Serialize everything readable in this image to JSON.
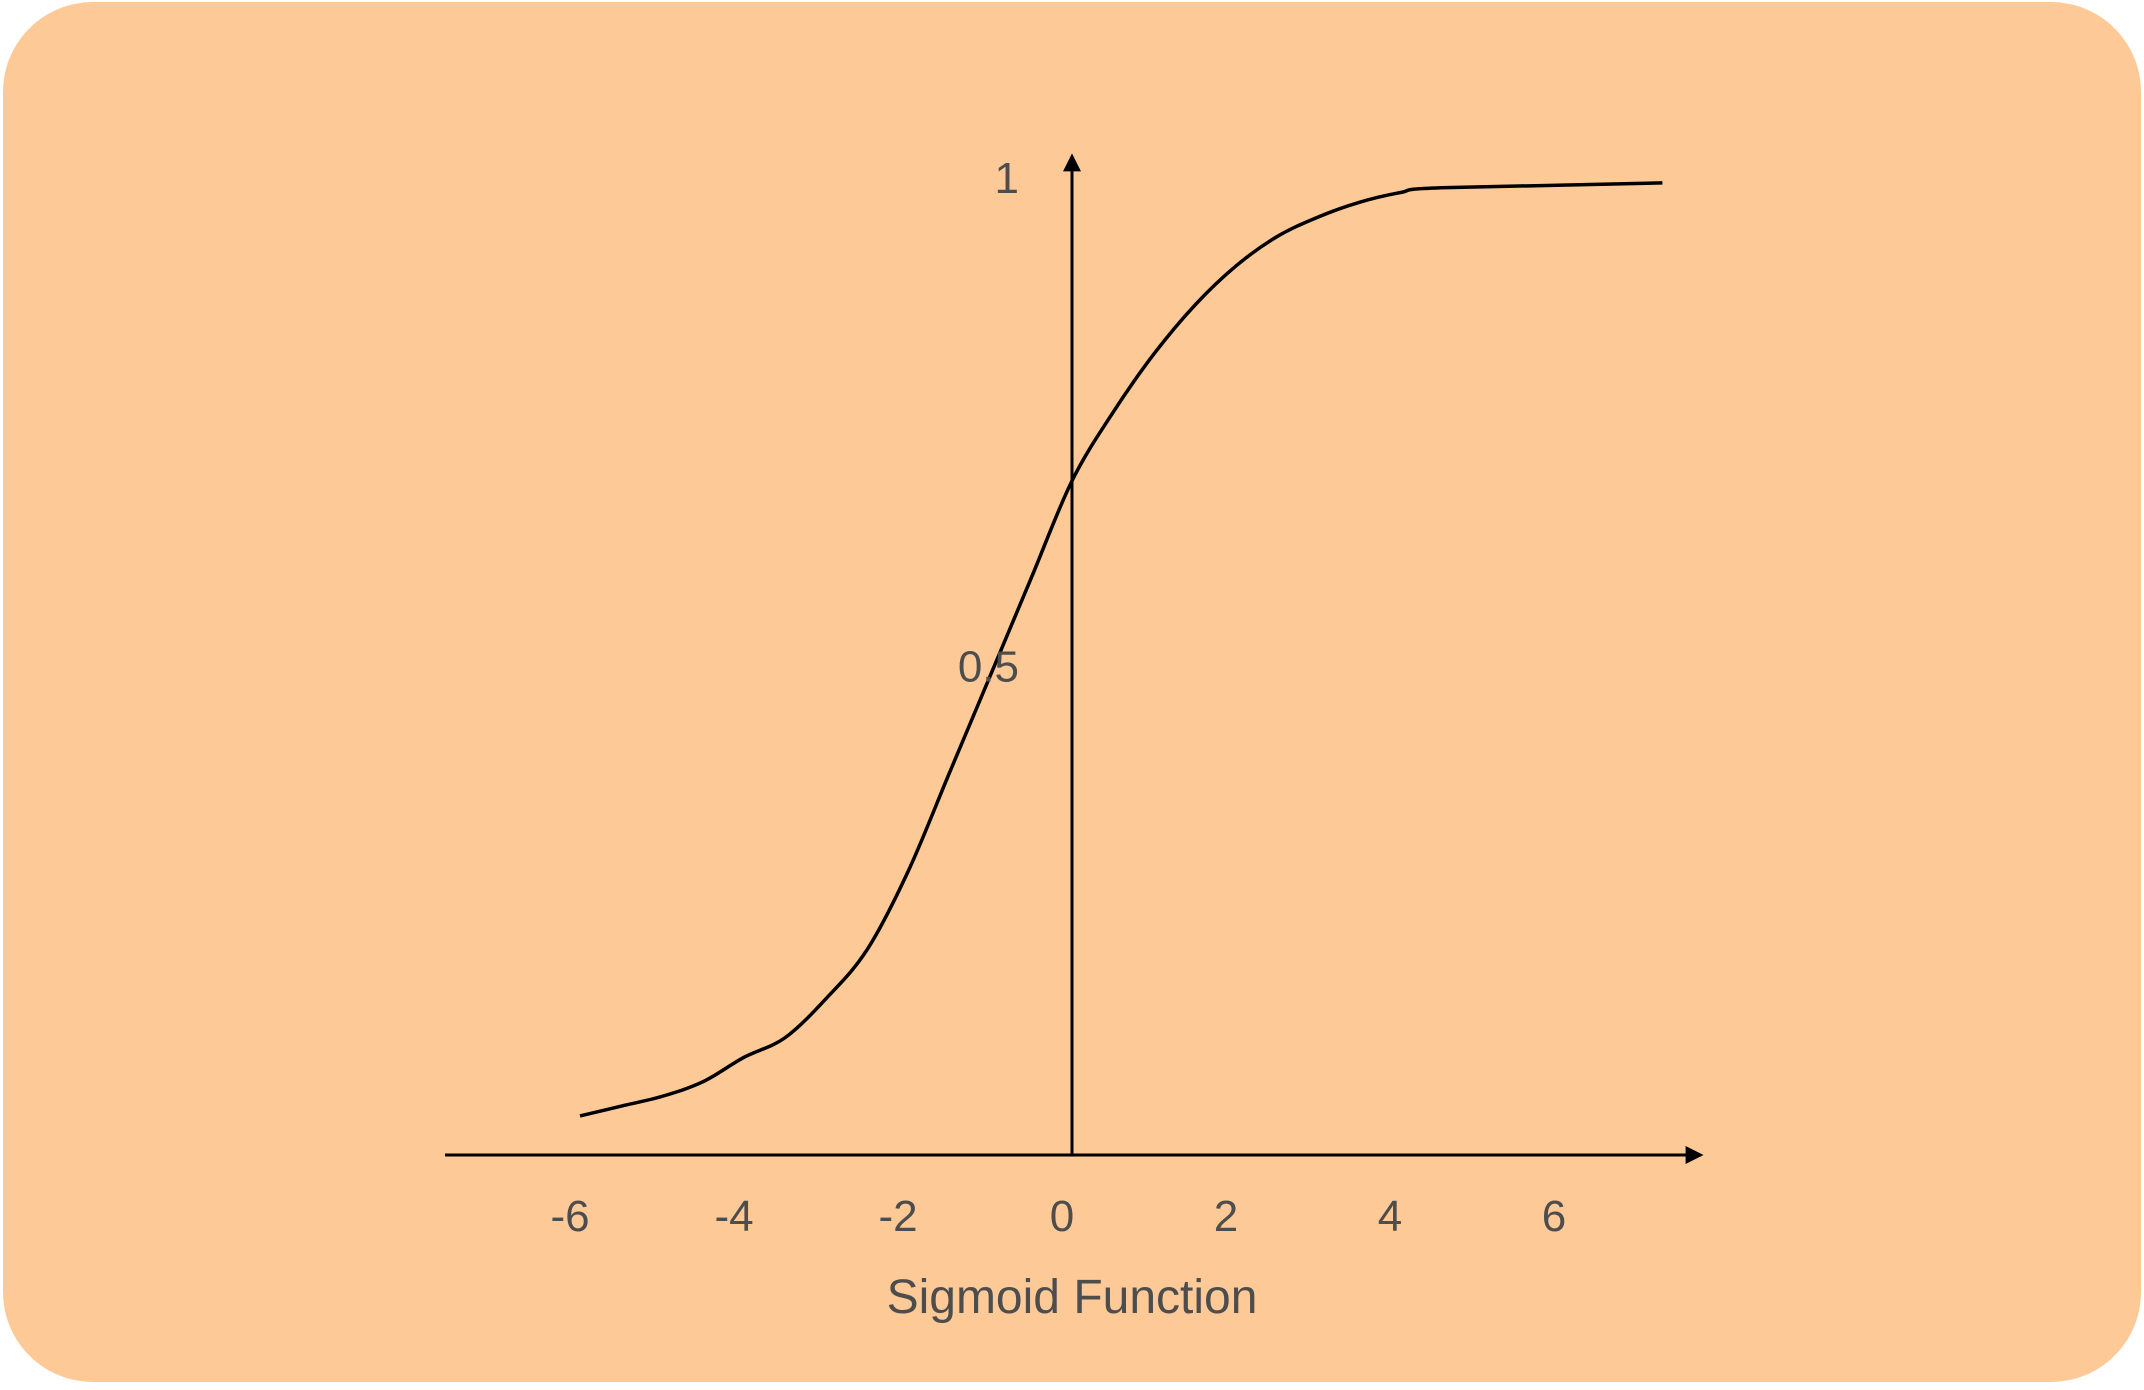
{
  "colors": {
    "background": "#FDC997",
    "curve": "#000000",
    "axis": "#000000",
    "text": "#4d4d4d"
  },
  "chart_data": {
    "type": "line",
    "title": "Sigmoid Function",
    "xlabel": "",
    "ylabel": "",
    "x_ticks": [
      "-6",
      "-4",
      "-2",
      "0",
      "2",
      "4",
      "6"
    ],
    "y_ticks": [
      "0.5",
      "1"
    ],
    "xlim": [
      -7.5,
      7.5
    ],
    "ylim": [
      0,
      1
    ],
    "grid": false,
    "series": [
      {
        "x": [
          -6,
          -5.5,
          -5,
          -4.5,
          -4,
          -3.5,
          -3,
          -2.5,
          -2,
          -1.5,
          -1,
          -0.5,
          0,
          0.5,
          1,
          1.5,
          2,
          2.5,
          3,
          3.5,
          4,
          4.5,
          7.2
        ],
        "y": [
          0.04,
          0.05,
          0.06,
          0.075,
          0.1,
          0.12,
          0.16,
          0.21,
          0.29,
          0.39,
          0.49,
          0.59,
          0.69,
          0.76,
          0.82,
          0.87,
          0.91,
          0.94,
          0.96,
          0.975,
          0.985,
          0.99,
          0.995
        ]
      }
    ]
  }
}
